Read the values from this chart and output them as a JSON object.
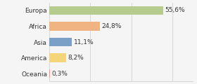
{
  "categories": [
    "Europa",
    "Africa",
    "Asia",
    "America",
    "Oceania"
  ],
  "values": [
    55.6,
    24.8,
    11.1,
    8.2,
    0.3
  ],
  "labels": [
    "55,6%",
    "24,8%",
    "11,1%",
    "8,2%",
    "0,3%"
  ],
  "bar_colors": [
    "#b5cc8e",
    "#f0b482",
    "#7b9fc7",
    "#f5d57a",
    "#e8a0a0"
  ],
  "background_color": "#f5f5f5",
  "xlim": [
    0,
    70
  ],
  "label_fontsize": 6.5,
  "tick_fontsize": 6.5,
  "bar_height": 0.55
}
